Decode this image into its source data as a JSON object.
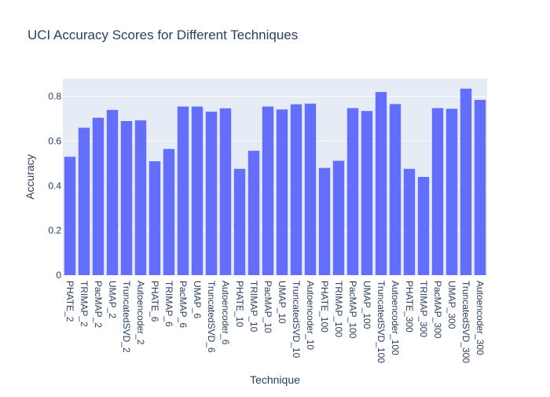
{
  "chart_data": {
    "type": "bar",
    "title": "UCI Accuracy Scores for Different Techniques",
    "xlabel": "Technique",
    "ylabel": "Accuracy",
    "ylim": [
      0,
      0.88
    ],
    "yticks": [
      0,
      0.2,
      0.4,
      0.6,
      0.8
    ],
    "ytick_labels": [
      "0",
      "0.2",
      "0.4",
      "0.6",
      "0.8"
    ],
    "grid": true,
    "bar_color": "#636efa",
    "plot_background": "#e5ecf6",
    "categories": [
      "PHATE_2",
      "TRIMAP_2",
      "PacMAP_2",
      "UMAP_2",
      "TruncatedSVD_2",
      "Autoencoder_2",
      "PHATE_6",
      "TRIMAP_6",
      "PacMAP_6",
      "UMAP_6",
      "TruncatedSVD_6",
      "Autoencoder_6",
      "PHATE_10",
      "TRIMAP_10",
      "PacMAP_10",
      "UMAP_10",
      "TruncatedSVD_10",
      "Autoencoder_10",
      "PHATE_100",
      "TRIMAP_100",
      "PacMAP_100",
      "UMAP_100",
      "TruncatedSVD_100",
      "Autoencoder_100",
      "PHATE_300",
      "TRIMAP_300",
      "PacMAP_300",
      "UMAP_300",
      "TruncatedSVD_300",
      "Autoencoder_300"
    ],
    "values": [
      0.53,
      0.66,
      0.705,
      0.74,
      0.69,
      0.693,
      0.51,
      0.565,
      0.755,
      0.755,
      0.732,
      0.747,
      0.476,
      0.557,
      0.755,
      0.742,
      0.765,
      0.768,
      0.48,
      0.512,
      0.748,
      0.735,
      0.82,
      0.766,
      0.476,
      0.44,
      0.748,
      0.745,
      0.835,
      0.785
    ]
  }
}
